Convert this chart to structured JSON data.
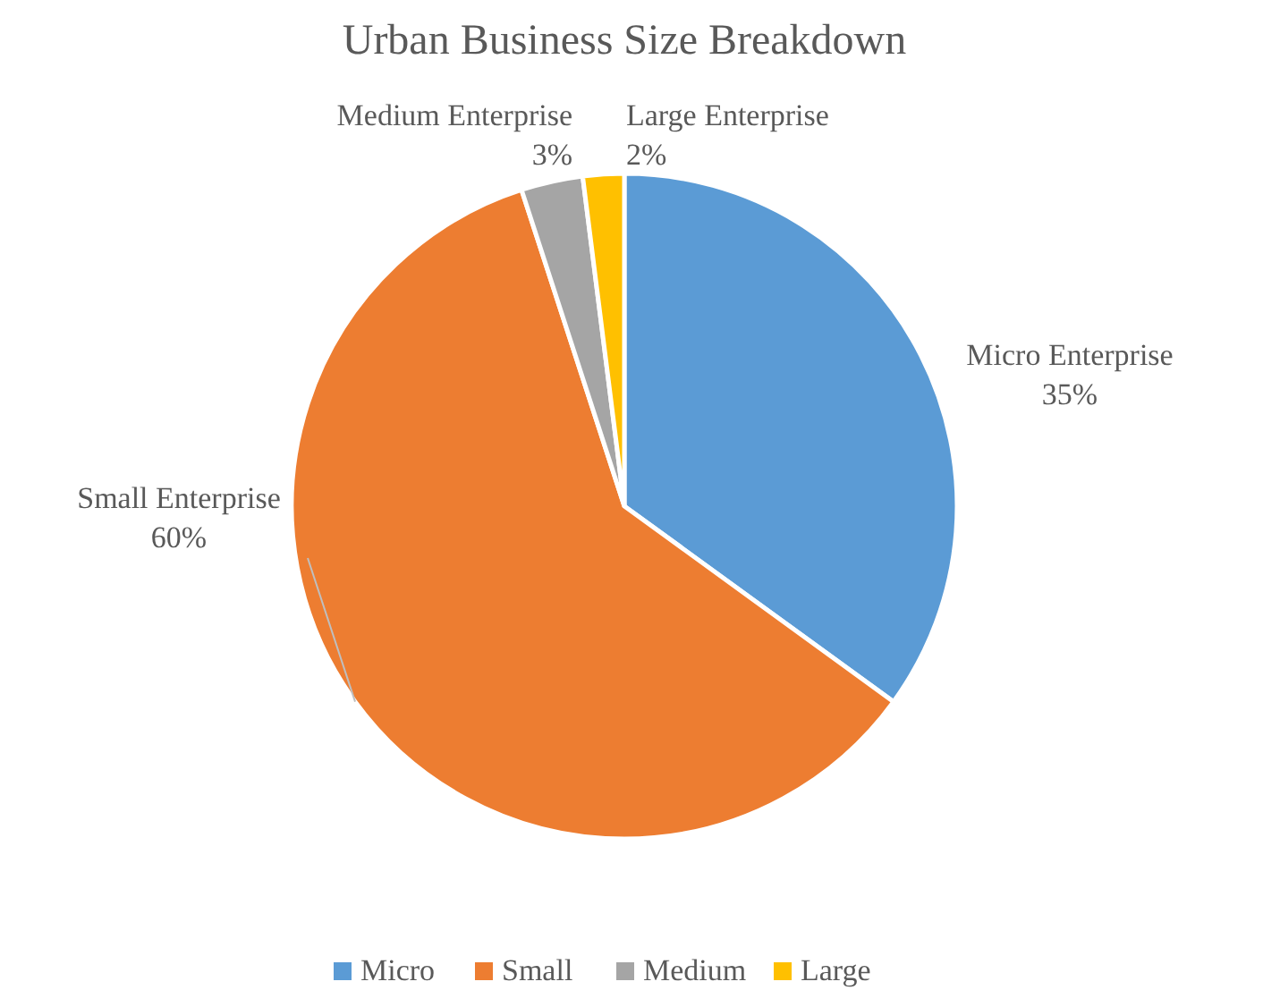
{
  "chart_data": {
    "type": "pie",
    "title": "Urban Business Size Breakdown",
    "categories": [
      "Micro",
      "Small",
      "Medium",
      "Large"
    ],
    "values": [
      35,
      60,
      3,
      2
    ],
    "colors": [
      "#5b9bd5",
      "#ed7d31",
      "#a5a5a5",
      "#ffc000"
    ],
    "value_labels": [
      "35%",
      "60%",
      "3%",
      "2%"
    ],
    "annotations": [
      {
        "text": "Micro Enterprise",
        "x": "Micro"
      },
      {
        "text": "Small Enterprise",
        "x": "Small"
      },
      {
        "text": "Medium Enterprise",
        "x": "Medium"
      },
      {
        "text": "Large Enterprise",
        "x": "Large"
      }
    ],
    "legend": "bottom"
  }
}
